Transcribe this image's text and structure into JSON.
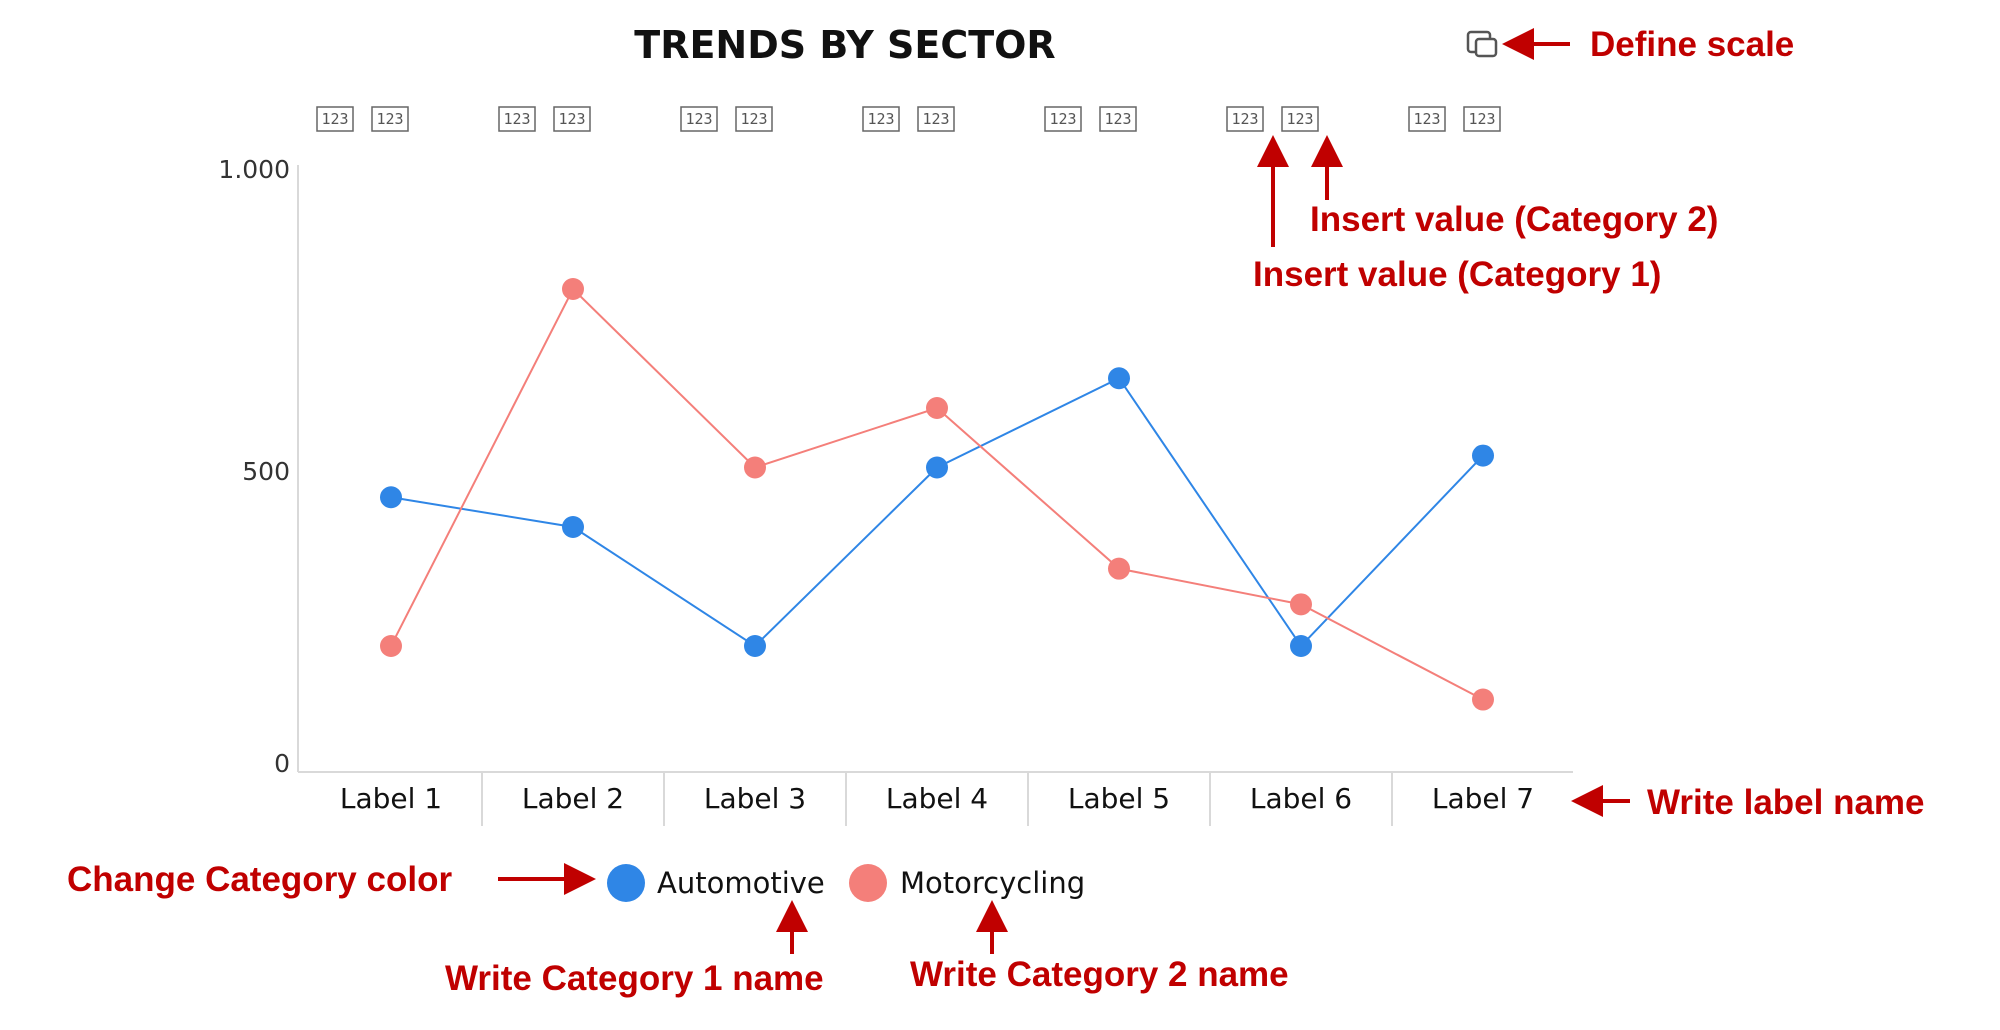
{
  "chart_data": {
    "type": "line",
    "title": "TRENDS BY SECTOR",
    "categories": [
      "Label 1",
      "Label 2",
      "Label 3",
      "Label 4",
      "Label 5",
      "Label 6",
      "Label 7"
    ],
    "y_tick_labels": [
      "1.000",
      "500",
      "0"
    ],
    "y_ticks": [
      1000,
      500,
      0
    ],
    "ylim": [
      0,
      1000
    ],
    "grid": false,
    "legend_position": "bottom",
    "value_box_label": "123",
    "series": [
      {
        "name": "Automotive",
        "color": "#2f86e6",
        "values": [
          450,
          400,
          200,
          500,
          650,
          200,
          520
        ]
      },
      {
        "name": "Motorcycling",
        "color": "#f47f7a",
        "values": [
          200,
          800,
          500,
          600,
          330,
          270,
          110
        ]
      }
    ]
  },
  "annotations": {
    "color": "#c00000",
    "define_scale": "Define scale",
    "insert_value_cat2": "Insert value (Category 2)",
    "insert_value_cat1": "Insert value (Category 1)",
    "write_label_name": "Write label name",
    "change_category_color": "Change Category color",
    "write_category1_name": "Write Category 1 name",
    "write_category2_name": "Write Category 2 name"
  },
  "icons": {
    "scale": "copy-layers-icon"
  }
}
